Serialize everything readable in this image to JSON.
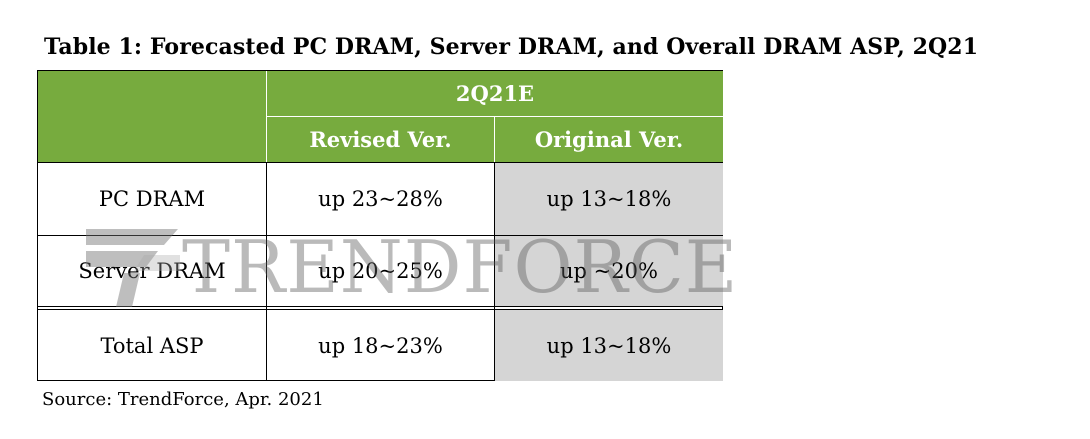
{
  "table": {
    "title": "Table 1: Forecasted PC DRAM, Server DRAM, and Overall DRAM ASP, 2Q21",
    "period_header": "2Q21E",
    "columns": [
      "Revised Ver.",
      "Original Ver."
    ],
    "rows": [
      {
        "label": "PC DRAM",
        "revised": "up 23~28%",
        "original": "up 13~18%"
      },
      {
        "label": "Server DRAM",
        "revised": "up 20~25%",
        "original": "up ~20%"
      },
      {
        "label": "Total ASP",
        "revised": "up 18~23%",
        "original": "up 13~18%"
      }
    ],
    "source": "Source: TrendForce, Apr. 2021"
  },
  "watermark": {
    "text": "TRENDFORCE",
    "logo_icon": "trendforce-logo-icon"
  },
  "colors": {
    "header_green": "#77ab3e",
    "original_column_gray": "#d5d5d5"
  }
}
